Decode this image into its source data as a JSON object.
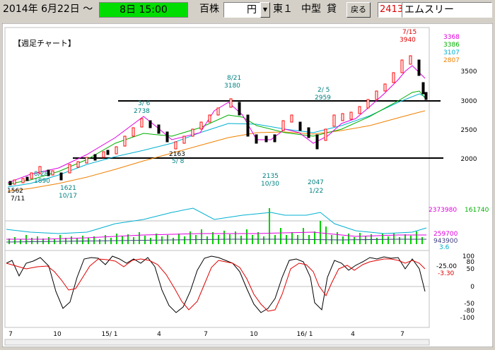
{
  "toolbar": {
    "date_label": "2014年 6月22日 ～",
    "time_value": "8日 15:00",
    "shares_label": "百株",
    "price_label": "円",
    "market_label": "東１",
    "size_label": "中型",
    "loan_label": "貸",
    "back_button": "戻る",
    "stock_code": "2413",
    "stock_name": "エムスリー",
    "accent_green": "#00dd00",
    "code_color": "#e00000"
  },
  "chart": {
    "title": "【週足チャート】",
    "price_axis": [
      "3500",
      "3000",
      "2500",
      "2000"
    ],
    "annotations": {
      "a1": "1562",
      "a1d": "7/11",
      "a2d": "8/28",
      "a2": "1890",
      "a3": "1621",
      "a3d": "10/17",
      "a4d": "3/ 6",
      "a4": "2738",
      "a5": "2163",
      "a5d": "5/ 8",
      "a6d": "8/21",
      "a6": "3180",
      "a7": "2135",
      "a7d": "10/30",
      "a8d": "2/ 5",
      "a8": "2959",
      "a9": "2047",
      "a9d": "1/22",
      "a10d": "7/15",
      "a10": "3940"
    },
    "ma_values": {
      "current": "3368",
      "ma_short": "3386",
      "ma_mid": "3107",
      "ma_long": "2807"
    },
    "volume": {
      "v1": "2373980",
      "v2": "161740",
      "v3": "259700",
      "v4": "943900",
      "v5": "3.6"
    },
    "oscillator": {
      "axis": [
        "100",
        "80",
        "50",
        "0",
        "-50",
        "-80",
        "-100"
      ],
      "val_black": "-25.00",
      "val_red": "-3.30"
    },
    "x_axis": [
      "7",
      "10",
      "15/ 1",
      "4",
      "7",
      "10",
      "16/ 1",
      "4",
      "7"
    ],
    "colors": {
      "ma_short": "#e000e0",
      "ma_mid": "#00b000",
      "ma_long": "#f08000",
      "ma_extra": "#00b0d0",
      "volume": "#00d000",
      "candle_up": "#ff0000",
      "candle_down": "#000000"
    }
  }
}
